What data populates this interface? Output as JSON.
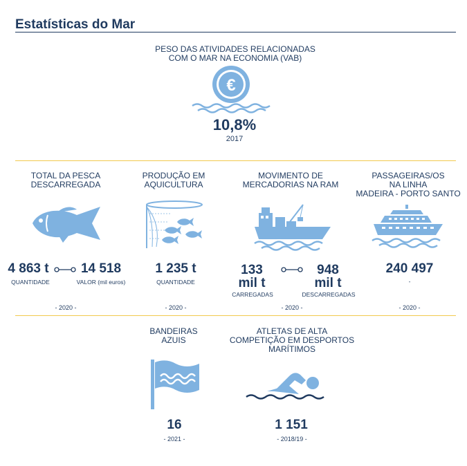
{
  "page": {
    "title": "Estatísticas do Mar"
  },
  "colors": {
    "navy": "#1f3a5f",
    "icon": "#7fb2e0",
    "rule": "#f2c94c"
  },
  "vab": {
    "label_line1": "PESO DAS ATIVIDADES RELACIONADAS",
    "label_line2": "COM O MAR NA ECONOMIA (VAB)",
    "icon": "euro-coin-icon",
    "value": "10,8%",
    "year": "2017"
  },
  "pesca": {
    "label_line1": "TOTAL DA PESCA",
    "label_line2": "DESCARREGADA",
    "icon": "fish-icon",
    "value1": "4 863 t",
    "caption1": "QUANTIDADE",
    "value2": "14 518",
    "caption2": "VALOR (mil euros)",
    "year": "- 2020 -"
  },
  "aquicultura": {
    "label_line1": "PRODUÇÃO EM",
    "label_line2": "AQUICULTURA",
    "icon": "fish-net-icon",
    "value": "1 235 t",
    "caption": "QUANTIDADE",
    "year": "- 2020 -"
  },
  "mercadorias": {
    "label_line1": "MOVIMENTO DE",
    "label_line2": "MERCADORIAS NA RAM",
    "icon": "cargo-ship-icon",
    "value1_line1": "133",
    "value1_line2": "mil t",
    "caption1": "CARREGADAS",
    "value2_line1": "948",
    "value2_line2": "mil t",
    "caption2": "DESCARREGADAS",
    "year": "- 2020 -"
  },
  "passageiros": {
    "label_line1": "PASSAGEIRAS/OS",
    "label_line2": "NA LINHA",
    "label_line3": "MADEIRA - PORTO SANTO",
    "icon": "ferry-icon",
    "value": "240 497",
    "caption": "-",
    "year": "- 2020 -"
  },
  "bandeiras": {
    "label_line1": "BANDEIRAS",
    "label_line2": "AZUIS",
    "icon": "blue-flag-icon",
    "value": "16",
    "year": "- 2021 -"
  },
  "atletas": {
    "label_line1": "ATLETAS DE ALTA",
    "label_line2": "COMPETIÇÃO EM DESPORTOS",
    "label_line3": "MARÍTIMOS",
    "icon": "swimmer-icon",
    "value": "1 151",
    "year": "- 2018/19 -"
  }
}
